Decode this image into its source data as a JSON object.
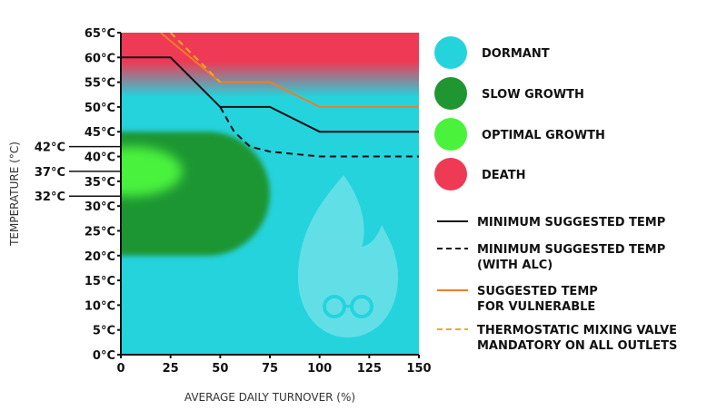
{
  "chart_data": {
    "type": "line",
    "xlabel": "AVERAGE DAILY TURNOVER (%)",
    "ylabel": "TEMPERATURE (°C)",
    "xlim": [
      0,
      150
    ],
    "ylim": [
      0,
      65
    ],
    "x_ticks": [
      0,
      25,
      50,
      75,
      100,
      125,
      150
    ],
    "y_ticks": [
      0,
      5,
      10,
      15,
      20,
      25,
      30,
      35,
      40,
      45,
      50,
      55,
      60,
      65
    ],
    "y_tick_labels": [
      "0°C",
      "5°C",
      "10°C",
      "15°C",
      "20°C",
      "25°C",
      "30°C",
      "35°C",
      "40°C",
      "45°C",
      "50°C",
      "55°C",
      "60°C",
      "65°C"
    ],
    "extra_ticks": [
      {
        "value": 42,
        "label": "42°C"
      },
      {
        "value": 37,
        "label": "37°C"
      },
      {
        "value": 32,
        "label": "32°C"
      }
    ],
    "zones": [
      {
        "name": "DORMANT",
        "color": "#25d3dd"
      },
      {
        "name": "SLOW GROWTH",
        "color": "#1f9632",
        "y_range": [
          20,
          45
        ],
        "x_max": 75
      },
      {
        "name": "OPTIMAL GROWTH",
        "color": "#4af23c",
        "y_range": [
          32,
          42
        ],
        "x_max": 30
      },
      {
        "name": "DEATH",
        "color": "#ee3a55",
        "y_range": [
          55,
          65
        ]
      }
    ],
    "series": [
      {
        "name": "MINIMUM SUGGESTED TEMP",
        "color": "#111111",
        "dash": "solid",
        "x": [
          0,
          25,
          50,
          75,
          100,
          150
        ],
        "y": [
          60,
          60,
          50,
          50,
          45,
          45
        ]
      },
      {
        "name": "MINIMUM SUGGESTED TEMP (WITH ALC)",
        "color": "#111111",
        "dash": "dashed",
        "x": [
          50,
          57,
          65,
          75,
          100,
          150
        ],
        "y": [
          50,
          45,
          42,
          41,
          40,
          40
        ]
      },
      {
        "name": "SUGGESTED TEMP FOR VULNERABLE",
        "color": "#f07c2a",
        "dash": "solid",
        "x": [
          20,
          50,
          75,
          100,
          150
        ],
        "y": [
          65,
          55,
          55,
          50,
          50
        ]
      },
      {
        "name": "THERMOSTATIC MIXING VALVE MANDATORY ON ALL OUTLETS",
        "color": "#f5a623",
        "dash": "dashed",
        "x": [
          25,
          50
        ],
        "y": [
          65,
          55
        ]
      }
    ]
  },
  "legend": {
    "zones": [
      {
        "label": "DORMANT",
        "color": "#25d3dd"
      },
      {
        "label": "SLOW GROWTH",
        "color": "#1f9632"
      },
      {
        "label": "OPTIMAL GROWTH",
        "color": "#4af23c"
      },
      {
        "label": "DEATH",
        "color": "#ee3a55"
      }
    ],
    "lines": [
      {
        "lines": [
          "MINIMUM SUGGESTED TEMP"
        ],
        "color": "#111111",
        "dash": "solid"
      },
      {
        "lines": [
          "MINIMUM SUGGESTED TEMP",
          "(WITH ALC)"
        ],
        "color": "#111111",
        "dash": "dashed"
      },
      {
        "lines": [
          "SUGGESTED TEMP",
          "FOR VULNERABLE"
        ],
        "color": "#f07c2a",
        "dash": "solid"
      },
      {
        "lines": [
          "THERMOSTATIC MIXING VALVE",
          "MANDATORY ON ALL OUTLETS"
        ],
        "color": "#f5a623",
        "dash": "dashed"
      }
    ]
  },
  "watermark_icon": "flame-mascot-icon"
}
